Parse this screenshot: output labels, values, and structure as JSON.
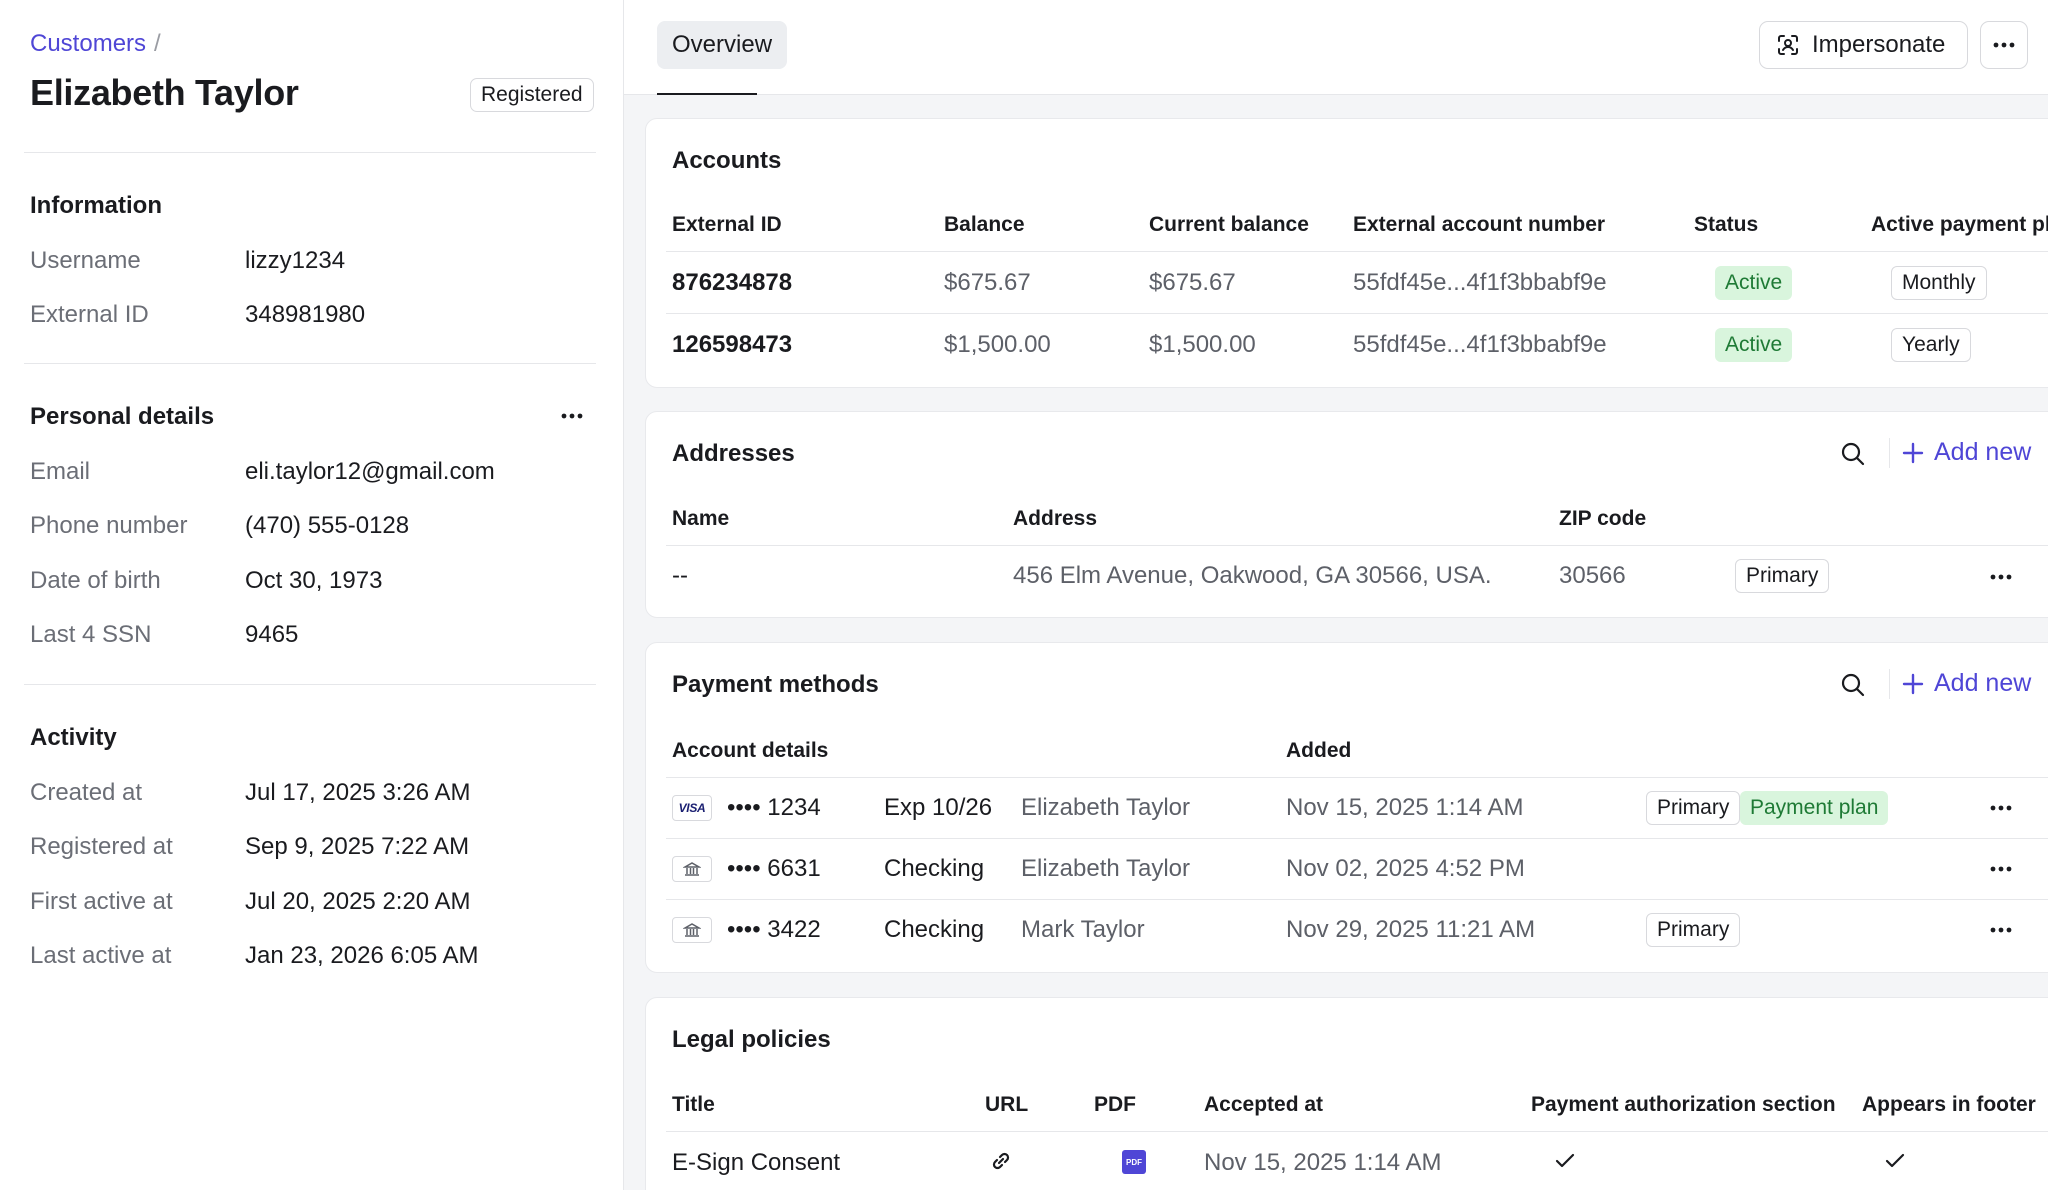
{
  "breadcrumb": {
    "parent": "Customers",
    "separator": "/"
  },
  "customer": {
    "name": "Elizabeth Taylor",
    "status_badge": "Registered"
  },
  "information": {
    "title": "Information",
    "rows": [
      {
        "label": "Username",
        "value": "lizzy1234"
      },
      {
        "label": "External ID",
        "value": "348981980"
      }
    ]
  },
  "personal": {
    "title": "Personal details",
    "rows": [
      {
        "label": "Email",
        "value": "eli.taylor12@gmail.com"
      },
      {
        "label": "Phone number",
        "value": "(470) 555-0128"
      },
      {
        "label": "Date of birth",
        "value": "Oct 30, 1973"
      },
      {
        "label": "Last 4 SSN",
        "value": "9465"
      }
    ]
  },
  "activity": {
    "title": "Activity",
    "rows": [
      {
        "label": "Created at",
        "value": "Jul 17, 2025 3:26 AM"
      },
      {
        "label": "Registered at",
        "value": "Sep 9, 2025 7:22 AM"
      },
      {
        "label": "First active at",
        "value": "Jul 20, 2025 2:20 AM"
      },
      {
        "label": "Last active at",
        "value": "Jan 23, 2026 6:05 AM"
      }
    ]
  },
  "topbar": {
    "tab_overview": "Overview",
    "impersonate_label": "Impersonate"
  },
  "accounts": {
    "title": "Accounts",
    "columns": [
      "External ID",
      "Balance",
      "Current balance",
      "External account number",
      "Status",
      "Active payment pl"
    ],
    "rows": [
      {
        "external_id": "876234878",
        "balance": "$675.67",
        "current_balance": "$675.67",
        "account_number": "55fdf45e...4f1f3bbabf9e",
        "status": "Active",
        "plan": "Monthly"
      },
      {
        "external_id": "126598473",
        "balance": "$1,500.00",
        "current_balance": "$1,500.00",
        "account_number": "55fdf45e...4f1f3bbabf9e",
        "status": "Active",
        "plan": "Yearly"
      }
    ]
  },
  "addresses": {
    "title": "Addresses",
    "add_new": "Add new",
    "columns": [
      "Name",
      "Address",
      "ZIP code"
    ],
    "rows": [
      {
        "name": "--",
        "address": "456 Elm Avenue, Oakwood, GA 30566, USA.",
        "zip": "30566",
        "badge": "Primary"
      }
    ]
  },
  "payment_methods": {
    "title": "Payment methods",
    "add_new": "Add new",
    "columns": [
      "Account details",
      "Added"
    ],
    "rows": [
      {
        "icon": "visa-card-icon",
        "icon_text": "VISA",
        "masked": "•••• 1234",
        "detail": "Exp 10/26",
        "holder": "Elizabeth Taylor",
        "added": "Nov 15, 2025 1:14 AM",
        "badge": "Primary",
        "badge2": "Payment plan"
      },
      {
        "icon": "bank-icon",
        "masked": "•••• 6631",
        "detail": "Checking",
        "holder": "Elizabeth Taylor",
        "added": "Nov 02, 2025 4:52 PM",
        "badge": "",
        "badge2": ""
      },
      {
        "icon": "bank-icon",
        "masked": "•••• 3422",
        "detail": "Checking",
        "holder": "Mark Taylor",
        "added": "Nov 29, 2025 11:21 AM",
        "badge": "Primary",
        "badge2": ""
      }
    ]
  },
  "legal_policies": {
    "title": "Legal policies",
    "columns": [
      "Title",
      "URL",
      "PDF",
      "Accepted at",
      "Payment authorization section",
      "Appears in footer"
    ],
    "rows": [
      {
        "title": "E-Sign Consent",
        "pdf_label": "PDF",
        "accepted_at": "Nov 15, 2025 1:14 AM"
      }
    ]
  },
  "colors": {
    "accent": "#4f46d6",
    "success_bg": "#d9f5dd",
    "success_text": "#1e7a35",
    "panel_bg": "#f4f5f7"
  }
}
